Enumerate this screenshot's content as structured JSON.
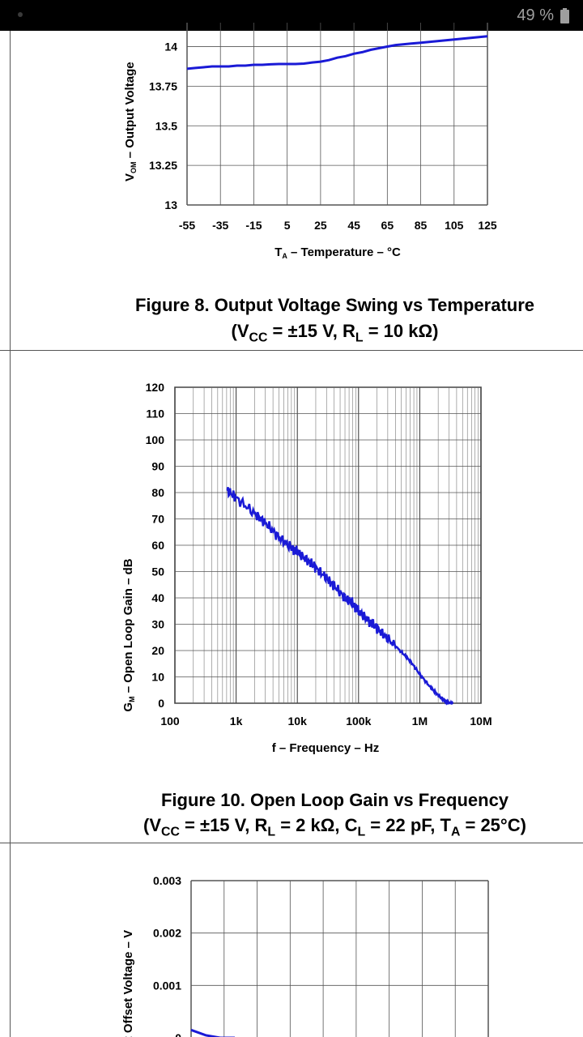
{
  "status_bar": {
    "battery_text": "49 %"
  },
  "figure8": {
    "caption_line1": "Figure 8. Output Voltage Swing vs Temperature",
    "caption_line2": {
      "open": "(V",
      "sub1": "CC",
      "mid": " = ±15 V, R",
      "sub2": "L",
      "end": " = 10 kΩ)"
    },
    "xlabel": {
      "pre": "T",
      "sub": "A",
      "post": " – Temperature – °C"
    },
    "ylabel": {
      "pre": "V",
      "sub": "OM",
      "post": " – Output Voltage"
    }
  },
  "figure10": {
    "caption_line1": "Figure 10. Open Loop Gain vs Frequency",
    "caption_line2": {
      "open": "(V",
      "sub1": "CC",
      "mid1": " = ±15 V, R",
      "sub2": "L",
      "mid2": " = 2 kΩ, C",
      "sub3": "L",
      "mid3": " = 22 pF, T",
      "sub4": "A",
      "end": " = 25°C)"
    },
    "xlabel": "f – Frequency – Hz",
    "ylabel": {
      "pre": "G",
      "sub": "M",
      "post": " – Open Loop Gain – dB"
    }
  },
  "figure_next": {
    "ylabel": "Input Offset Voltage – V"
  },
  "chart_data": [
    {
      "type": "line",
      "xlim": [
        -55,
        125
      ],
      "ylim": [
        13,
        14.1
      ],
      "xticks": [
        "-55",
        "-35",
        "-15",
        "5",
        "25",
        "45",
        "65",
        "85",
        "105",
        "125"
      ],
      "yticks": [
        "13",
        "13.25",
        "13.5",
        "13.75",
        "14"
      ],
      "grid": true,
      "color": "#1a1ad6",
      "series": [
        {
          "x": [
            -55,
            -50,
            -45,
            -40,
            -35,
            -30,
            -25,
            -20,
            -15,
            -10,
            -5,
            0,
            5,
            10,
            15,
            20,
            25,
            30,
            35,
            40,
            45,
            50,
            55,
            60,
            65,
            70,
            75,
            80,
            85,
            90,
            95,
            100,
            105,
            110,
            115,
            120,
            125
          ],
          "y": [
            13.86,
            13.865,
            13.87,
            13.875,
            13.875,
            13.875,
            13.88,
            13.88,
            13.885,
            13.885,
            13.888,
            13.89,
            13.89,
            13.89,
            13.893,
            13.9,
            13.905,
            13.915,
            13.93,
            13.94,
            13.955,
            13.965,
            13.98,
            13.99,
            14.0,
            14.01,
            14.015,
            14.02,
            14.025,
            14.03,
            14.035,
            14.04,
            14.045,
            14.05,
            14.055,
            14.06,
            14.065
          ]
        }
      ]
    },
    {
      "type": "line",
      "xscale": "log",
      "xlim": [
        100,
        10000000
      ],
      "ylim": [
        0,
        120
      ],
      "xticks": [
        "100",
        "1k",
        "10k",
        "100k",
        "1M",
        "10M"
      ],
      "yticks": [
        "0",
        "10",
        "20",
        "30",
        "40",
        "50",
        "60",
        "70",
        "80",
        "90",
        "100",
        "110",
        "120"
      ],
      "grid": true,
      "color": "#1a1ad6",
      "series": [
        {
          "x": [
            700,
            1000,
            2000,
            3000,
            5000,
            8000,
            10000,
            15000,
            20000,
            30000,
            40000,
            60000,
            80000,
            100000,
            150000,
            200000,
            300000,
            500000,
            700000,
            1000000,
            1500000,
            2000000,
            2500000,
            3000000,
            3500000
          ],
          "y": [
            81,
            78,
            72,
            68.5,
            63,
            59,
            57.5,
            54,
            51.5,
            47.5,
            44.5,
            40,
            38,
            35,
            31,
            28.5,
            24.5,
            19.5,
            16,
            11,
            6,
            3,
            1,
            0,
            0
          ]
        }
      ]
    },
    {
      "type": "line",
      "ylim": [
        0,
        0.003
      ],
      "yticks": [
        "0.003",
        "0.002",
        "0.001",
        "0"
      ],
      "grid": true,
      "color": "#1a1ad6",
      "series": [
        {
          "x": [
            0,
            1,
            2,
            3
          ],
          "y": [
            0.00015,
            5e-05,
            0,
            0
          ]
        }
      ]
    }
  ]
}
